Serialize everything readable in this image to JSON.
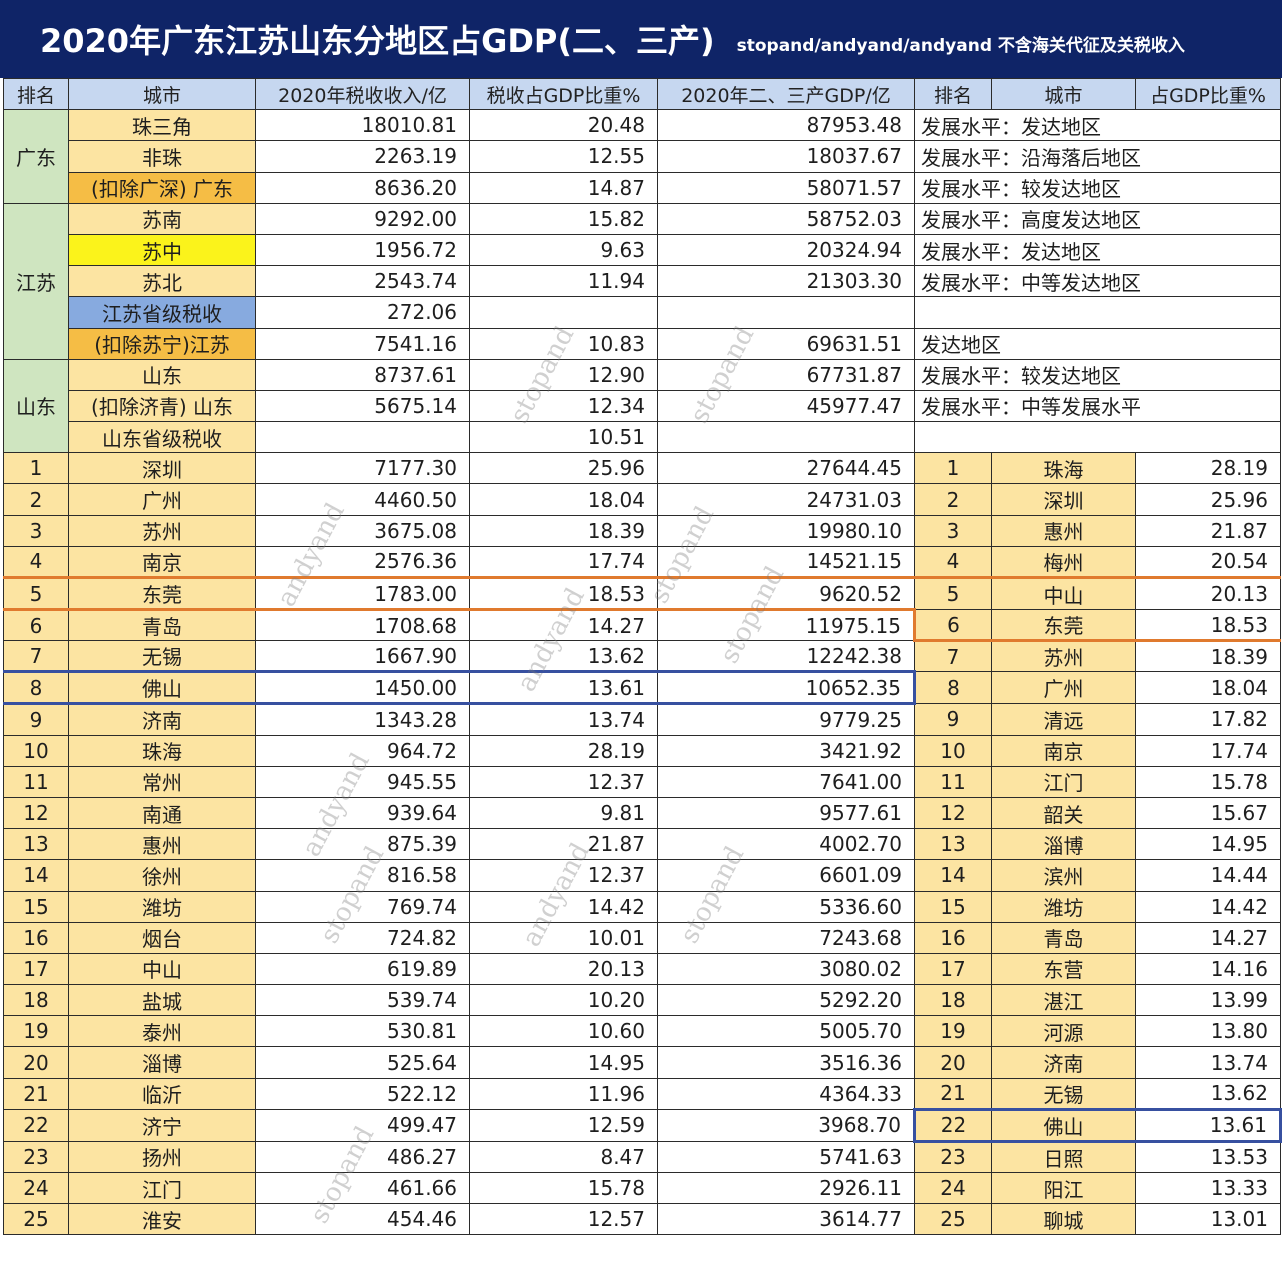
{
  "header": {
    "title": "2020年广东江苏山东分地区占GDP(二、三产)",
    "subtitle": "stopand/andyand/andyand 不含海关代征及关税收入",
    "bg_color": "#0f2467"
  },
  "columns": [
    "排名",
    "城市",
    "2020年税收收入/亿",
    "税收占GDP比重%",
    "2020年二、三产GDP/亿",
    "排名",
    "城市",
    "占GDP比重%"
  ],
  "regions": [
    {
      "province": "广东",
      "rows": [
        {
          "name": "珠三角",
          "tax": "18010.81",
          "ratio": "20.48",
          "gdp": "87953.48",
          "note": "发展水平：发达地区",
          "style": "yel"
        },
        {
          "name": "非珠",
          "tax": "2263.19",
          "ratio": "12.55",
          "gdp": "18037.67",
          "note": "发展水平：沿海落后地区",
          "style": "yel"
        },
        {
          "name": "(扣除广深) 广东",
          "tax": "8636.20",
          "ratio": "14.87",
          "gdp": "58071.57",
          "note": "发展水平：较发达地区",
          "style": "org"
        }
      ]
    },
    {
      "province": "江苏",
      "rows": [
        {
          "name": "苏南",
          "tax": "9292.00",
          "ratio": "15.82",
          "gdp": "58752.03",
          "note": "发展水平：高度发达地区",
          "style": "yel"
        },
        {
          "name": "苏中",
          "tax": "1956.72",
          "ratio": "9.63",
          "gdp": "20324.94",
          "note": "发展水平：发达地区",
          "style": "brt"
        },
        {
          "name": "苏北",
          "tax": "2543.74",
          "ratio": "11.94",
          "gdp": "21303.30",
          "note": "发展水平：中等发达地区",
          "style": "yel"
        },
        {
          "name": "江苏省级税收",
          "tax": "272.06",
          "ratio": "",
          "gdp": "",
          "note": "",
          "style": "blu"
        },
        {
          "name": "(扣除苏宁)江苏",
          "tax": "7541.16",
          "ratio": "10.83",
          "gdp": "69631.51",
          "note": "发达地区",
          "style": "org"
        }
      ]
    },
    {
      "province": "山东",
      "rows": [
        {
          "name": "山东",
          "tax": "8737.61",
          "ratio": "12.90",
          "gdp": "67731.87",
          "note": "发展水平：较发达地区",
          "style": "yel"
        },
        {
          "name": "(扣除济青) 山东",
          "tax": "5675.14",
          "ratio": "12.34",
          "gdp": "45977.47",
          "note": "发展水平：中等发展水平",
          "style": "yel"
        },
        {
          "name": "山东省级税收",
          "tax": "",
          "ratio": "10.51",
          "gdp": "",
          "note": "",
          "style": "yel"
        }
      ]
    }
  ],
  "rankings": [
    {
      "rank": "1",
      "city": "深圳",
      "tax": "7177.30",
      "ratio": "25.96",
      "gdp": "27644.45",
      "r_rank": "1",
      "r_city": "珠海",
      "r_ratio": "28.19"
    },
    {
      "rank": "2",
      "city": "广州",
      "tax": "4460.50",
      "ratio": "18.04",
      "gdp": "24731.03",
      "r_rank": "2",
      "r_city": "深圳",
      "r_ratio": "25.96"
    },
    {
      "rank": "3",
      "city": "苏州",
      "tax": "3675.08",
      "ratio": "18.39",
      "gdp": "19980.10",
      "r_rank": "3",
      "r_city": "惠州",
      "r_ratio": "21.87"
    },
    {
      "rank": "4",
      "city": "南京",
      "tax": "2576.36",
      "ratio": "17.74",
      "gdp": "14521.15",
      "r_rank": "4",
      "r_city": "梅州",
      "r_ratio": "20.54"
    },
    {
      "rank": "5",
      "city": "东莞",
      "tax": "1783.00",
      "ratio": "18.53",
      "gdp": "9620.52",
      "r_rank": "5",
      "r_city": "中山",
      "r_ratio": "20.13"
    },
    {
      "rank": "6",
      "city": "青岛",
      "tax": "1708.68",
      "ratio": "14.27",
      "gdp": "11975.15",
      "r_rank": "6",
      "r_city": "东莞",
      "r_ratio": "18.53"
    },
    {
      "rank": "7",
      "city": "无锡",
      "tax": "1667.90",
      "ratio": "13.62",
      "gdp": "12242.38",
      "r_rank": "7",
      "r_city": "苏州",
      "r_ratio": "18.39"
    },
    {
      "rank": "8",
      "city": "佛山",
      "tax": "1450.00",
      "ratio": "13.61",
      "gdp": "10652.35",
      "r_rank": "8",
      "r_city": "广州",
      "r_ratio": "18.04"
    },
    {
      "rank": "9",
      "city": "济南",
      "tax": "1343.28",
      "ratio": "13.74",
      "gdp": "9779.25",
      "r_rank": "9",
      "r_city": "清远",
      "r_ratio": "17.82"
    },
    {
      "rank": "10",
      "city": "珠海",
      "tax": "964.72",
      "ratio": "28.19",
      "gdp": "3421.92",
      "r_rank": "10",
      "r_city": "南京",
      "r_ratio": "17.74"
    },
    {
      "rank": "11",
      "city": "常州",
      "tax": "945.55",
      "ratio": "12.37",
      "gdp": "7641.00",
      "r_rank": "11",
      "r_city": "江门",
      "r_ratio": "15.78"
    },
    {
      "rank": "12",
      "city": "南通",
      "tax": "939.64",
      "ratio": "9.81",
      "gdp": "9577.61",
      "r_rank": "12",
      "r_city": "韶关",
      "r_ratio": "15.67"
    },
    {
      "rank": "13",
      "city": "惠州",
      "tax": "875.39",
      "ratio": "21.87",
      "gdp": "4002.70",
      "r_rank": "13",
      "r_city": "淄博",
      "r_ratio": "14.95"
    },
    {
      "rank": "14",
      "city": "徐州",
      "tax": "816.58",
      "ratio": "12.37",
      "gdp": "6601.09",
      "r_rank": "14",
      "r_city": "滨州",
      "r_ratio": "14.44"
    },
    {
      "rank": "15",
      "city": "潍坊",
      "tax": "769.74",
      "ratio": "14.42",
      "gdp": "5336.60",
      "r_rank": "15",
      "r_city": "潍坊",
      "r_ratio": "14.42"
    },
    {
      "rank": "16",
      "city": "烟台",
      "tax": "724.82",
      "ratio": "10.01",
      "gdp": "7243.68",
      "r_rank": "16",
      "r_city": "青岛",
      "r_ratio": "14.27"
    },
    {
      "rank": "17",
      "city": "中山",
      "tax": "619.89",
      "ratio": "20.13",
      "gdp": "3080.02",
      "r_rank": "17",
      "r_city": "东营",
      "r_ratio": "14.16"
    },
    {
      "rank": "18",
      "city": "盐城",
      "tax": "539.74",
      "ratio": "10.20",
      "gdp": "5292.20",
      "r_rank": "18",
      "r_city": "湛江",
      "r_ratio": "13.99"
    },
    {
      "rank": "19",
      "city": "泰州",
      "tax": "530.81",
      "ratio": "10.60",
      "gdp": "5005.70",
      "r_rank": "19",
      "r_city": "河源",
      "r_ratio": "13.80"
    },
    {
      "rank": "20",
      "city": "淄博",
      "tax": "525.64",
      "ratio": "14.95",
      "gdp": "3516.36",
      "r_rank": "20",
      "r_city": "济南",
      "r_ratio": "13.74"
    },
    {
      "rank": "21",
      "city": "临沂",
      "tax": "522.12",
      "ratio": "11.96",
      "gdp": "4364.33",
      "r_rank": "21",
      "r_city": "无锡",
      "r_ratio": "13.62"
    },
    {
      "rank": "22",
      "city": "济宁",
      "tax": "499.47",
      "ratio": "12.59",
      "gdp": "3968.70",
      "r_rank": "22",
      "r_city": "佛山",
      "r_ratio": "13.61"
    },
    {
      "rank": "23",
      "city": "扬州",
      "tax": "486.27",
      "ratio": "8.47",
      "gdp": "5741.63",
      "r_rank": "23",
      "r_city": "日照",
      "r_ratio": "13.53"
    },
    {
      "rank": "24",
      "city": "江门",
      "tax": "461.66",
      "ratio": "15.78",
      "gdp": "2926.11",
      "r_rank": "24",
      "r_city": "阳江",
      "r_ratio": "13.33"
    },
    {
      "rank": "25",
      "city": "淮安",
      "tax": "454.46",
      "ratio": "12.57",
      "gdp": "3614.77",
      "r_rank": "25",
      "r_city": "聊城",
      "r_ratio": "13.01"
    }
  ],
  "highlights": {
    "orange": {
      "color": "#e07a2e",
      "left_row": 5,
      "right_row": 6,
      "city": "东莞"
    },
    "blue": {
      "color": "#3750a0",
      "left_row": 8,
      "right_row": 22,
      "city": "佛山"
    }
  },
  "watermarks": [
    "andyand",
    "stopand",
    "stopand",
    "andyand",
    "stopand",
    "stopand",
    "andyand",
    "stopand",
    "andyand",
    "stopand",
    "stopand"
  ]
}
